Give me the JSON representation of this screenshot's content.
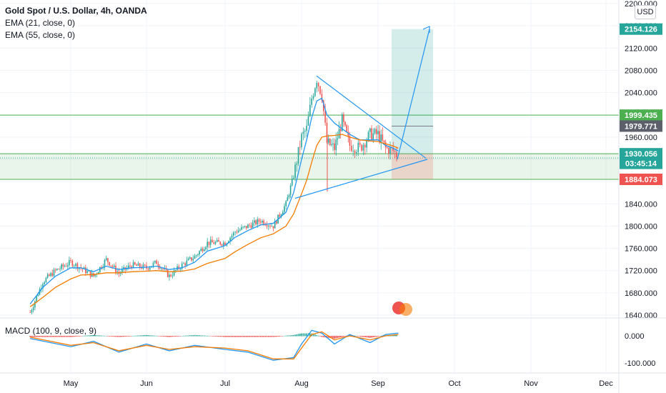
{
  "legend": {
    "title": "Gold Spot / U.S. Dollar, 4h, OANDA",
    "ema1": "EMA (21, close, 0)",
    "ema2": "EMA (55, close, 0)",
    "macd": "MACD (100, 9, close, 9)"
  },
  "currency_button": "USD",
  "colors": {
    "candle_up": "#26a69a",
    "candle_down": "#ef5350",
    "ema21": "#2196f3",
    "ema55": "#f57c00",
    "support_line": "#4caf50",
    "triangle": "#2196f3",
    "target_zone": "#26a69a",
    "stop_zone": "#ef5350"
  },
  "chart_data": [
    {
      "type": "line",
      "title": "Gold Spot / U.S. Dollar, 4h, OANDA",
      "ylim": [
        1625,
        2210
      ],
      "y_ticks": [
        "2200.000",
        "2160.000",
        "2120.000",
        "2080.000",
        "2040.000",
        "2000.000",
        "1960.000",
        "1920.000",
        "1880.000",
        "1840.000",
        "1800.000",
        "1760.000",
        "1720.000",
        "1680.000",
        "1640.000"
      ],
      "x_ticks": [
        "May",
        "Jun",
        "Jul",
        "Aug",
        "Sep",
        "Oct",
        "Nov",
        "Dec"
      ],
      "price_labels": [
        {
          "text": "2154.126",
          "value": 2154.126,
          "color": "#26a69a"
        },
        {
          "text": "1999.435",
          "value": 1999.435,
          "color": "#4caf50"
        },
        {
          "text": "1979.771",
          "value": 1979.771,
          "color": "#5d606b"
        },
        {
          "text": "1930.056",
          "value": 1930.056,
          "color": "#26a69a"
        },
        {
          "text": "03:45:14",
          "value": 1912.8,
          "color": "#26a69a"
        },
        {
          "text": "1884.073",
          "value": 1884.073,
          "color": "#ef5350"
        }
      ],
      "series": [
        {
          "name": "Gold Spot / U.S. Dollar",
          "x": [
            "Apr 15",
            "Apr 20",
            "Apr 25",
            "May 1",
            "May 5",
            "May 10",
            "May 15",
            "May 20",
            "May 25",
            "Jun 1",
            "Jun 5",
            "Jun 10",
            "Jun 15",
            "Jun 20",
            "Jun 25",
            "Jul 1",
            "Jul 5",
            "Jul 10",
            "Jul 15",
            "Jul 20",
            "Jul 25",
            "Jul 28",
            "Aug 1",
            "Aug 3",
            "Aug 5",
            "Aug 7",
            "Aug 9",
            "Aug 11",
            "Aug 14",
            "Aug 17",
            "Aug 20",
            "Aug 24",
            "Aug 28",
            "Sep 1",
            "Sep 4",
            "Sep 7",
            "Sep 9"
          ],
          "values": [
            1645,
            1700,
            1720,
            1735,
            1725,
            1710,
            1740,
            1715,
            1730,
            1725,
            1735,
            1710,
            1730,
            1745,
            1770,
            1770,
            1790,
            1800,
            1810,
            1800,
            1840,
            1890,
            1960,
            1975,
            2030,
            2065,
            2035,
            1950,
            1940,
            1990,
            1945,
            1940,
            1965,
            1965,
            1940,
            1935,
            1925
          ]
        },
        {
          "name": "EMA (21, close, 0)",
          "values": [
            1660,
            1690,
            1710,
            1725,
            1725,
            1718,
            1728,
            1722,
            1725,
            1726,
            1728,
            1722,
            1725,
            1735,
            1755,
            1765,
            1780,
            1792,
            1802,
            1805,
            1825,
            1860,
            1920,
            1955,
            1995,
            2025,
            2030,
            2000,
            1985,
            1975,
            1965,
            1955,
            1955,
            1955,
            1945,
            1940,
            1935
          ]
        },
        {
          "name": "EMA (55, close, 0)",
          "values": [
            1655,
            1672,
            1690,
            1705,
            1712,
            1713,
            1716,
            1716,
            1718,
            1719,
            1720,
            1718,
            1719,
            1723,
            1733,
            1742,
            1754,
            1767,
            1779,
            1786,
            1800,
            1822,
            1858,
            1882,
            1915,
            1945,
            1960,
            1962,
            1963,
            1965,
            1960,
            1955,
            1953,
            1952,
            1948,
            1944,
            1940
          ]
        }
      ],
      "annotations": {
        "horizontal_lines": [
          1999.435,
          1930.056,
          1884.073
        ],
        "symmetrical_triangle": {
          "upper": [
            [
              "Aug 3",
              2070
            ],
            [
              "Sep 17",
              1922
            ]
          ],
          "lower": [
            [
              "Jul 21",
              1850
            ],
            [
              "Sep 17",
              1920
            ]
          ]
        },
        "long_position": {
          "entry": 1930.056,
          "target": 2154.126,
          "stop": 1884.073,
          "stop_top": 1979.771
        },
        "projection_arrow": [
          [
            "Sep 9",
            1925
          ],
          [
            "Sep 13",
            2154
          ]
        ]
      }
    },
    {
      "type": "line",
      "title": "MACD (100, 9, close, 9)",
      "ylim": [
        -140,
        60
      ],
      "y_ticks": [
        "0.000",
        "-100.000"
      ],
      "x": [
        "Apr 15",
        "May 1",
        "May 10",
        "May 20",
        "Jun 1",
        "Jun 10",
        "Jun 20",
        "Jul 1",
        "Jul 10",
        "Jul 20",
        "Jul 28",
        "Aug 1",
        "Aug 5",
        "Aug 9",
        "Aug 14",
        "Aug 20",
        "Aug 28",
        "Sep 4",
        "Sep 9"
      ],
      "series": [
        {
          "name": "MACD",
          "values": [
            -10,
            -40,
            -20,
            -60,
            -30,
            -55,
            -35,
            -50,
            -60,
            -90,
            -80,
            -30,
            20,
            10,
            -30,
            5,
            -25,
            5,
            10
          ]
        },
        {
          "name": "Signal",
          "values": [
            -5,
            -35,
            -25,
            -55,
            -35,
            -50,
            -40,
            -45,
            -55,
            -85,
            -85,
            -45,
            5,
            15,
            -15,
            0,
            -15,
            0,
            5
          ]
        }
      ]
    }
  ]
}
